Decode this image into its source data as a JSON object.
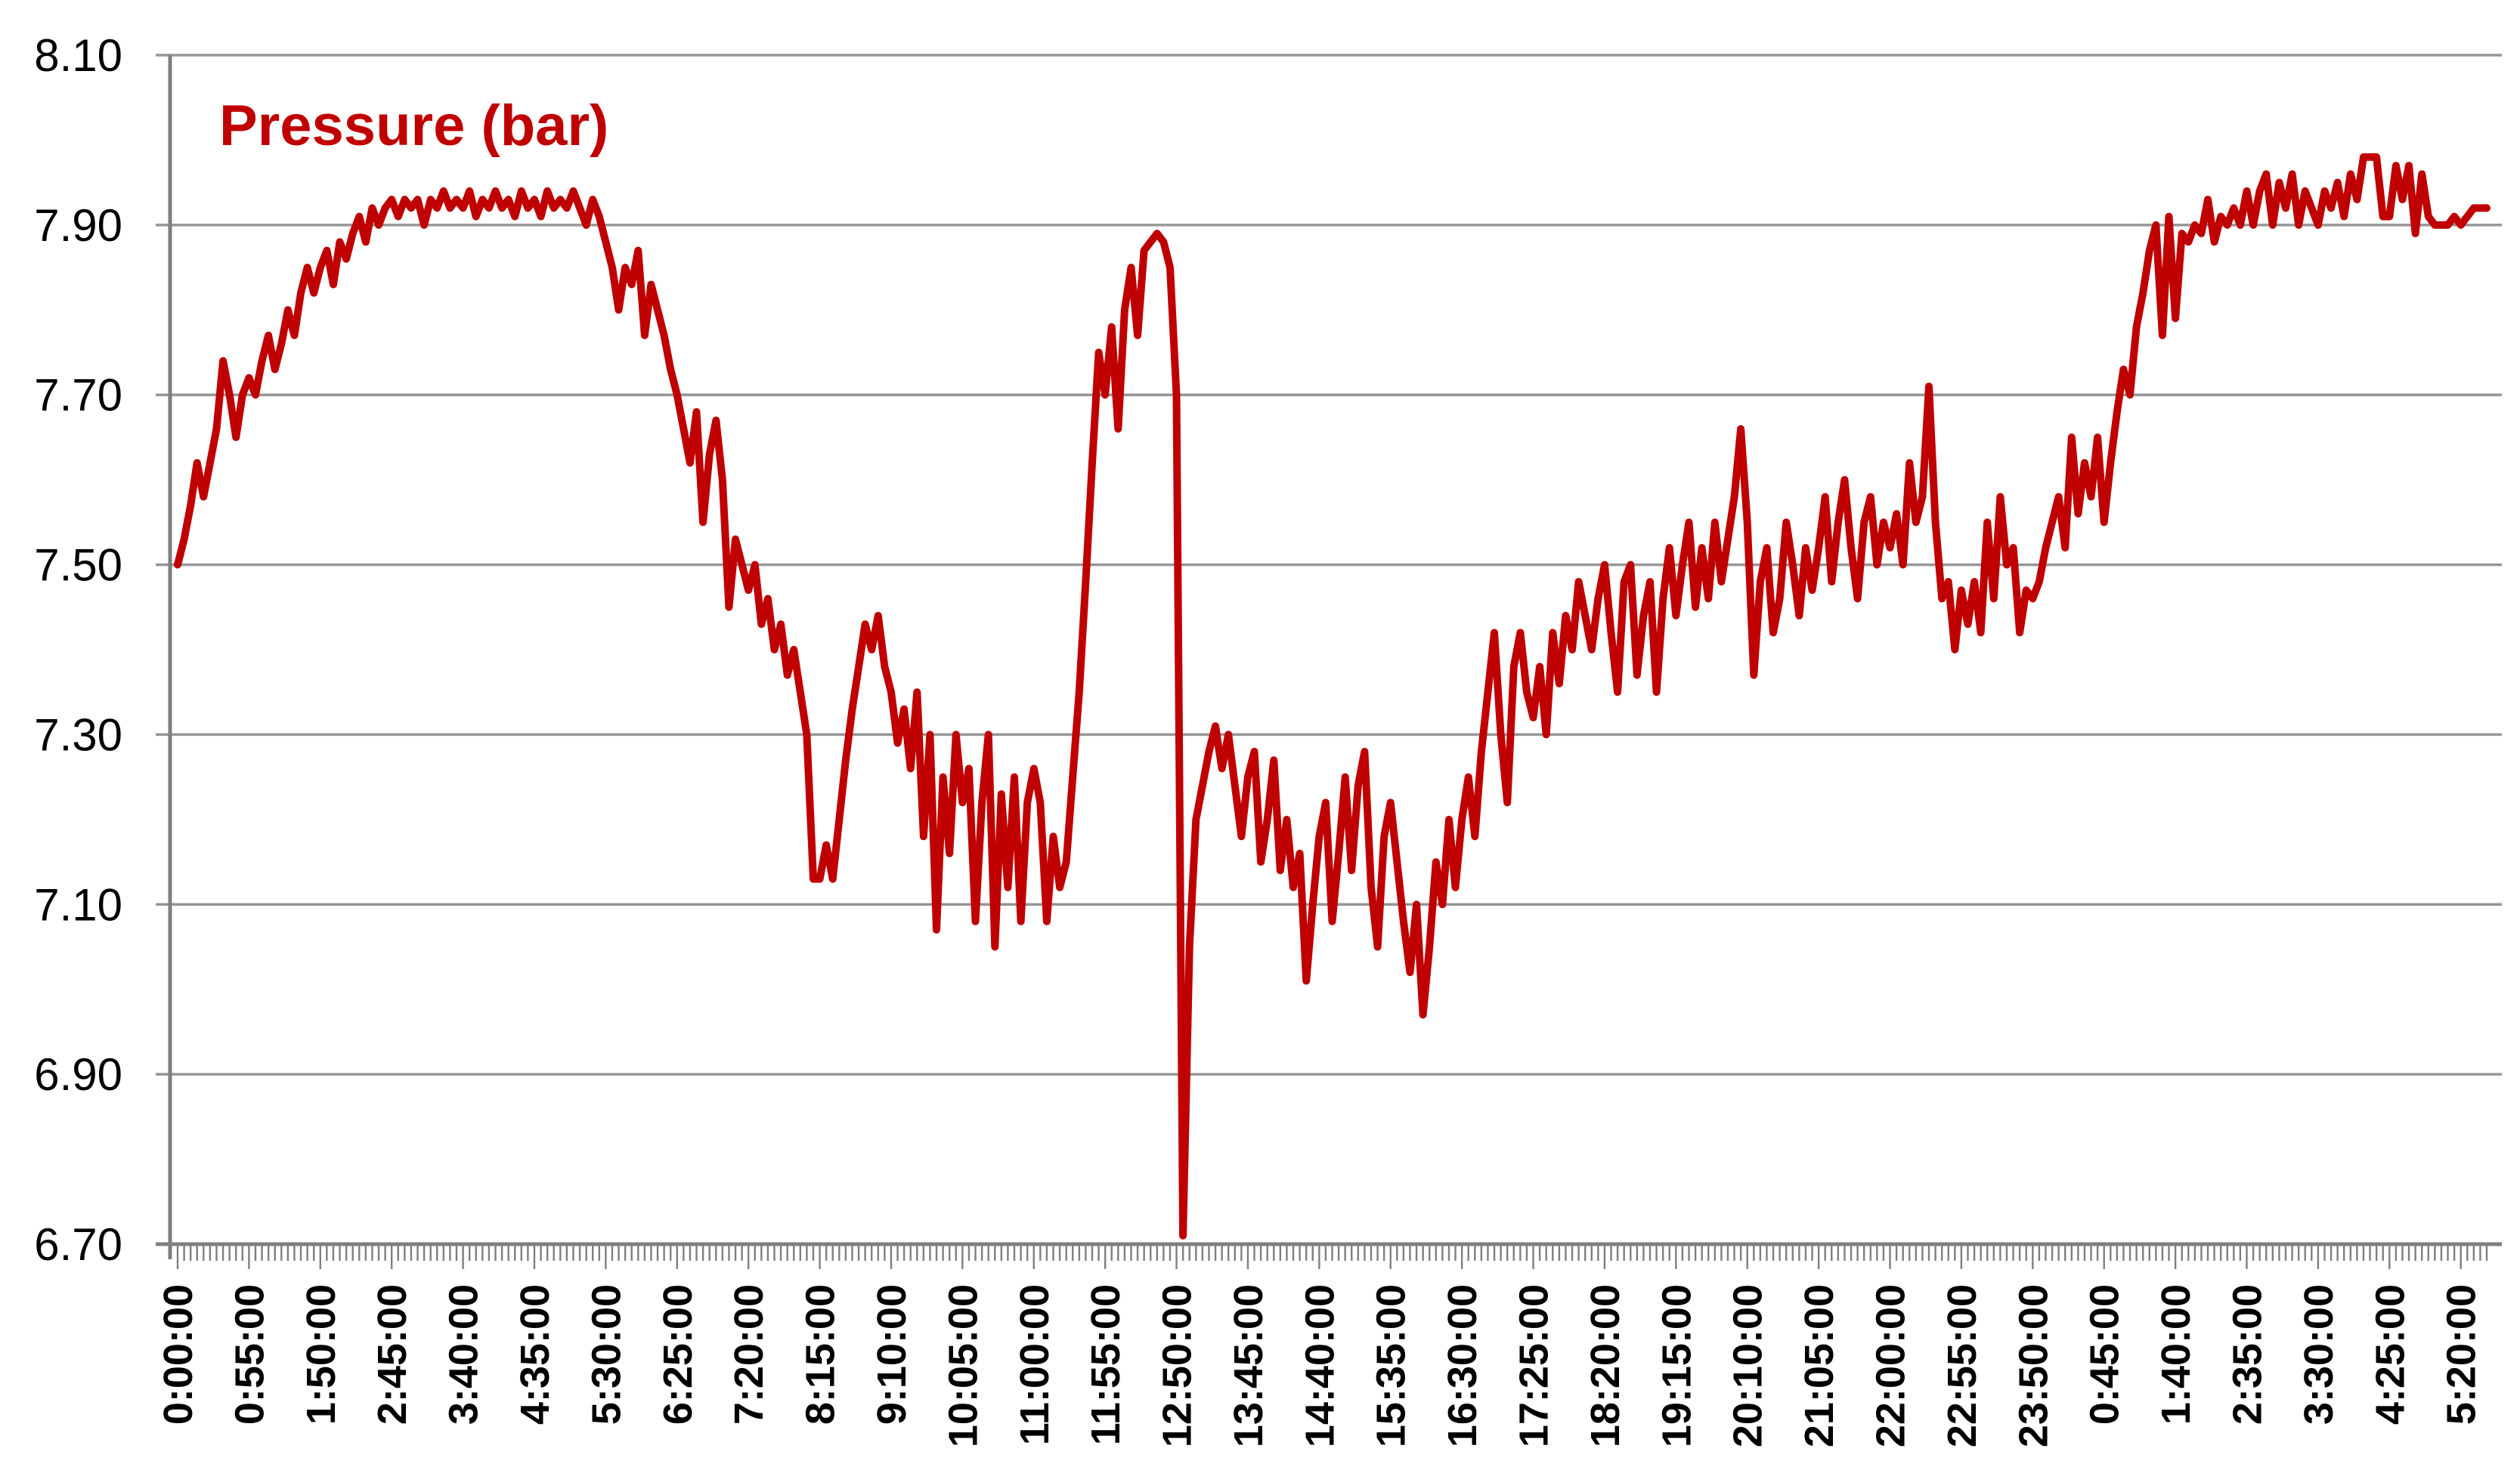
{
  "style": {
    "background": "#FFFFFF",
    "grid_color": "#969696",
    "axis_color": "#7F7F7F",
    "text_color": "#000000",
    "title_color": "#C00000"
  },
  "chart_data": {
    "type": "line",
    "title": "Pressure (bar)",
    "xlabel": "",
    "ylabel": "",
    "legend_position": "none",
    "grid": "horizontal",
    "ylim": [
      6.7,
      8.1
    ],
    "y_tick_step": 0.2,
    "y_tick_labels": [
      "8.10",
      "7.90",
      "7.70",
      "7.50",
      "7.30",
      "7.10",
      "6.90",
      "6.70"
    ],
    "x_interval_minutes": 5,
    "x_label_every_n_points": 11,
    "x_tick_labels": [
      "0:00:00",
      "0:55:00",
      "1:50:00",
      "2:45:00",
      "3:40:00",
      "4:35:00",
      "5:30:00",
      "6:25:00",
      "7:20:00",
      "8:15:00",
      "9:10:00",
      "10:05:00",
      "11:00:00",
      "11:55:00",
      "12:50:00",
      "13:45:00",
      "14:40:00",
      "15:35:00",
      "16:30:00",
      "17:25:00",
      "18:20:00",
      "19:15:00",
      "20:10:00",
      "21:05:00",
      "22:00:00",
      "22:55:00",
      "23:50:00",
      "0:45:00",
      "1:40:00",
      "2:35:00",
      "3:30:00",
      "4:25:00",
      "5:20:00"
    ],
    "series": [
      {
        "name": "Pressure (bar)",
        "color": "#C00000",
        "values": [
          7.5,
          7.53,
          7.57,
          7.62,
          7.58,
          7.62,
          7.66,
          7.74,
          7.7,
          7.65,
          7.7,
          7.72,
          7.7,
          7.74,
          7.77,
          7.73,
          7.76,
          7.8,
          7.77,
          7.82,
          7.85,
          7.82,
          7.85,
          7.87,
          7.83,
          7.88,
          7.86,
          7.89,
          7.91,
          7.88,
          7.92,
          7.9,
          7.92,
          7.93,
          7.91,
          7.93,
          7.92,
          7.93,
          7.9,
          7.93,
          7.92,
          7.94,
          7.92,
          7.93,
          7.92,
          7.94,
          7.91,
          7.93,
          7.92,
          7.94,
          7.92,
          7.93,
          7.91,
          7.94,
          7.92,
          7.93,
          7.91,
          7.94,
          7.92,
          7.93,
          7.92,
          7.94,
          7.92,
          7.9,
          7.93,
          7.91,
          7.88,
          7.85,
          7.8,
          7.85,
          7.83,
          7.87,
          7.77,
          7.83,
          7.8,
          7.77,
          7.73,
          7.7,
          7.66,
          7.62,
          7.68,
          7.55,
          7.63,
          7.67,
          7.6,
          7.45,
          7.53,
          7.5,
          7.47,
          7.5,
          7.43,
          7.46,
          7.4,
          7.43,
          7.37,
          7.4,
          7.35,
          7.3,
          7.13,
          7.13,
          7.17,
          7.13,
          7.2,
          7.27,
          7.33,
          7.38,
          7.43,
          7.4,
          7.44,
          7.38,
          7.35,
          7.29,
          7.33,
          7.26,
          7.35,
          7.18,
          7.3,
          7.07,
          7.25,
          7.16,
          7.3,
          7.22,
          7.26,
          7.08,
          7.22,
          7.3,
          7.05,
          7.23,
          7.12,
          7.25,
          7.08,
          7.22,
          7.26,
          7.22,
          7.08,
          7.18,
          7.12,
          7.15,
          7.25,
          7.35,
          7.48,
          7.62,
          7.75,
          7.7,
          7.78,
          7.66,
          7.8,
          7.85,
          7.77,
          7.87,
          7.88,
          7.89,
          7.88,
          7.85,
          7.7,
          6.71,
          7.05,
          7.2,
          7.24,
          7.28,
          7.31,
          7.26,
          7.3,
          7.24,
          7.18,
          7.25,
          7.28,
          7.15,
          7.2,
          7.27,
          7.14,
          7.2,
          7.12,
          7.16,
          7.01,
          7.1,
          7.18,
          7.22,
          7.08,
          7.16,
          7.25,
          7.14,
          7.24,
          7.28,
          7.12,
          7.05,
          7.18,
          7.22,
          7.15,
          7.08,
          7.02,
          7.1,
          6.97,
          7.05,
          7.15,
          7.1,
          7.2,
          7.12,
          7.2,
          7.25,
          7.18,
          7.28,
          7.35,
          7.42,
          7.3,
          7.22,
          7.38,
          7.42,
          7.35,
          7.32,
          7.38,
          7.3,
          7.42,
          7.36,
          7.44,
          7.4,
          7.48,
          7.44,
          7.4,
          7.46,
          7.5,
          7.42,
          7.35,
          7.48,
          7.5,
          7.37,
          7.44,
          7.48,
          7.35,
          7.46,
          7.52,
          7.44,
          7.5,
          7.55,
          7.45,
          7.52,
          7.46,
          7.55,
          7.48,
          7.53,
          7.58,
          7.66,
          7.55,
          7.37,
          7.48,
          7.52,
          7.42,
          7.46,
          7.55,
          7.5,
          7.44,
          7.52,
          7.47,
          7.52,
          7.58,
          7.48,
          7.55,
          7.6,
          7.52,
          7.46,
          7.55,
          7.58,
          7.5,
          7.55,
          7.52,
          7.56,
          7.5,
          7.62,
          7.55,
          7.58,
          7.71,
          7.55,
          7.46,
          7.48,
          7.4,
          7.47,
          7.43,
          7.48,
          7.42,
          7.55,
          7.46,
          7.58,
          7.5,
          7.52,
          7.42,
          7.47,
          7.46,
          7.48,
          7.52,
          7.55,
          7.58,
          7.52,
          7.65,
          7.56,
          7.62,
          7.58,
          7.65,
          7.55,
          7.62,
          7.68,
          7.73,
          7.7,
          7.78,
          7.82,
          7.87,
          7.9,
          7.77,
          7.91,
          7.79,
          7.89,
          7.88,
          7.9,
          7.89,
          7.93,
          7.88,
          7.91,
          7.9,
          7.92,
          7.9,
          7.94,
          7.9,
          7.94,
          7.96,
          7.9,
          7.95,
          7.92,
          7.96,
          7.9,
          7.94,
          7.92,
          7.9,
          7.94,
          7.92,
          7.95,
          7.91,
          7.96,
          7.93,
          7.98,
          7.98,
          7.98,
          7.91,
          7.91,
          7.97,
          7.93,
          7.97,
          7.89,
          7.96,
          7.91,
          7.9,
          7.9,
          7.9,
          7.91,
          7.9,
          7.91,
          7.92,
          7.92,
          7.92
        ]
      }
    ]
  }
}
